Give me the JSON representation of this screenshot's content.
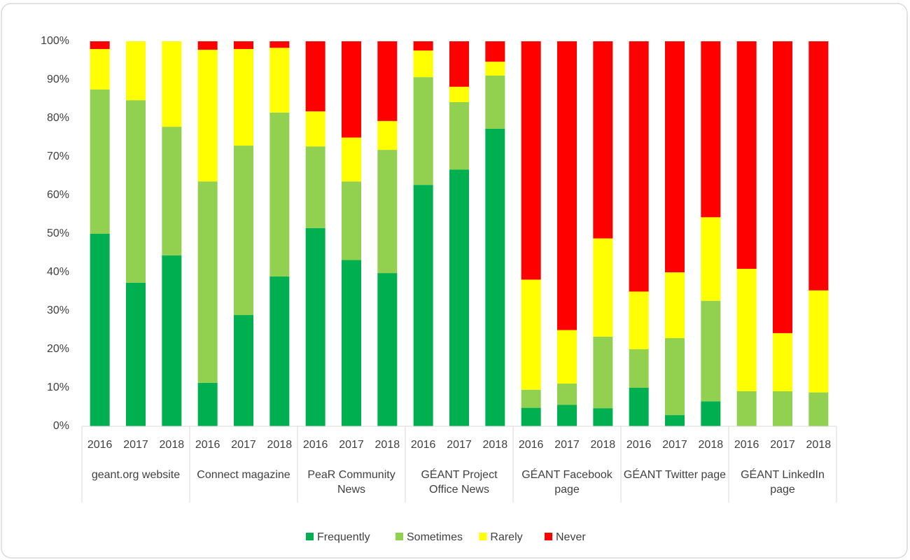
{
  "chart_data": {
    "type": "stacked_bar",
    "categories": [
      "2016",
      "2017",
      "2018",
      "2016",
      "2017",
      "2018",
      "2016",
      "2017",
      "2018",
      "2016",
      "2017",
      "2018",
      "2016",
      "2017",
      "2018",
      "2016",
      "2017",
      "2018",
      "2016",
      "2017",
      "2018"
    ],
    "groups": [
      "geant.org website",
      "Connect magazine",
      "PeaR Community News",
      "GÉANT Project Office News",
      "GÉANT Facebook page",
      "GÉANT Twitter page",
      "GÉANT LinkedIn page"
    ],
    "series": [
      {
        "name": "Frequently",
        "color": "#00b050",
        "values": [
          50,
          37.3,
          44.4,
          11.3,
          28.9,
          38.9,
          51.5,
          43.2,
          39.8,
          62.7,
          66.7,
          77.3,
          4.8,
          5.6,
          4.7,
          10,
          2.9,
          6.5,
          0,
          0,
          0
        ]
      },
      {
        "name": "Sometimes",
        "color": "#92d050",
        "values": [
          37.5,
          47.4,
          33.4,
          52.3,
          44,
          42.6,
          21.2,
          20.4,
          32,
          28,
          17.5,
          13.8,
          4.7,
          5.5,
          18.6,
          10,
          20,
          26.1,
          9.1,
          9.1,
          8.8
        ]
      },
      {
        "name": "Rarely",
        "color": "#ffff00",
        "values": [
          10.5,
          15.3,
          22.2,
          34.2,
          25.1,
          16.8,
          9.1,
          11.4,
          7.5,
          6.9,
          4,
          3.6,
          28.6,
          13.9,
          25.5,
          15,
          17.1,
          21.7,
          31.8,
          15.1,
          26.5
        ]
      },
      {
        "name": "Never",
        "color": "#ff0000",
        "values": [
          2,
          0,
          0,
          2.2,
          2,
          1.7,
          18.2,
          25,
          20.7,
          2.4,
          11.8,
          5.3,
          61.9,
          75,
          51.2,
          65,
          60,
          45.7,
          59.1,
          75.8,
          64.7
        ]
      }
    ],
    "ylim": [
      0,
      100
    ],
    "yticks": [
      {
        "value": 0,
        "label": "0%"
      },
      {
        "value": 10,
        "label": "10%"
      },
      {
        "value": 20,
        "label": "20%"
      },
      {
        "value": 30,
        "label": "30%"
      },
      {
        "value": 40,
        "label": "40%"
      },
      {
        "value": 50,
        "label": "50%"
      },
      {
        "value": 60,
        "label": "60%"
      },
      {
        "value": 70,
        "label": "70%"
      },
      {
        "value": 80,
        "label": "80%"
      },
      {
        "value": 90,
        "label": "90%"
      },
      {
        "value": 100,
        "label": "100%"
      }
    ],
    "grid": false,
    "legend": "bottom"
  }
}
